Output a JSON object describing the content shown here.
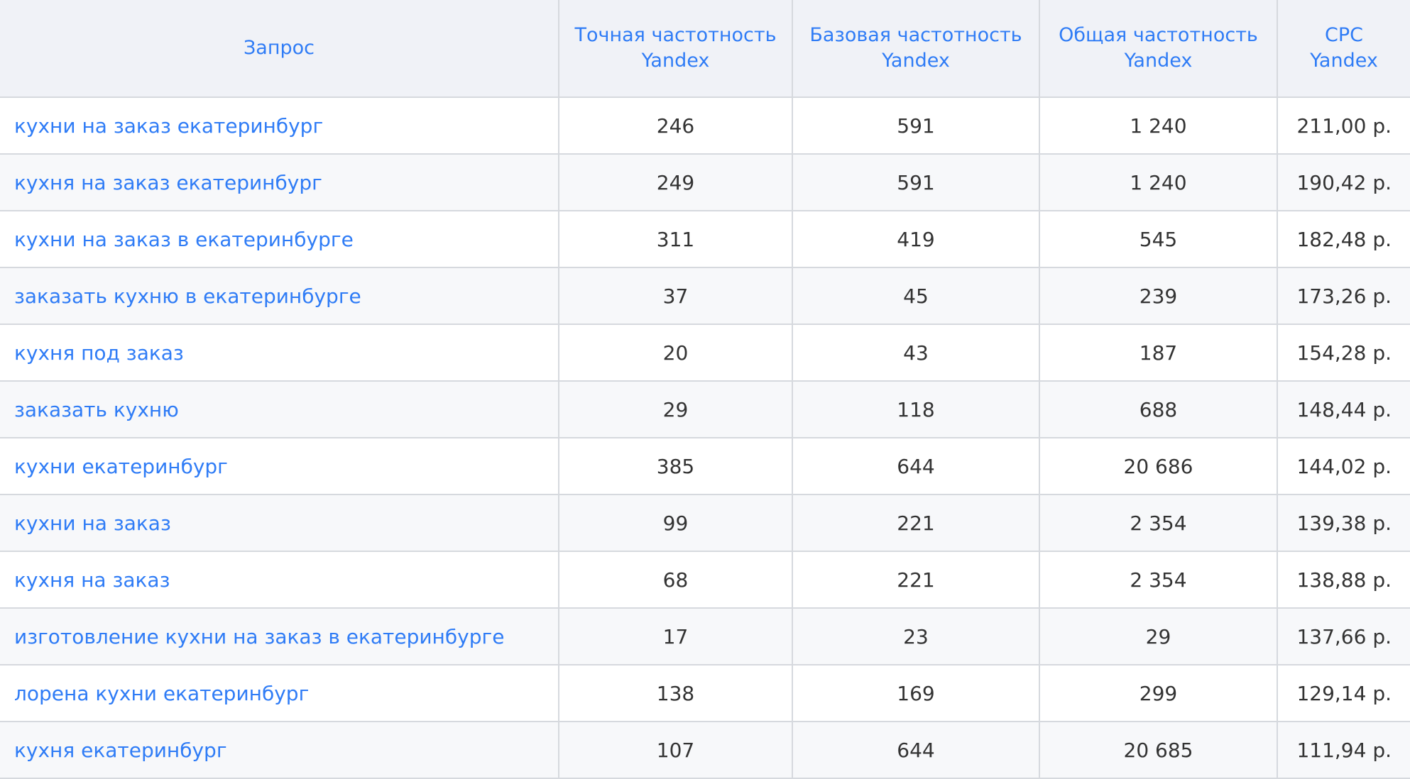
{
  "headers": [
    "Запрос",
    "Точная частотность Yandex",
    "Базовая частотность Yandex",
    "Общая частотность Yandex",
    "CPC Yandex"
  ],
  "header_lines": [
    [
      "Запрос"
    ],
    [
      "Точная частотность",
      "Yandex"
    ],
    [
      "Базовая частотность",
      "Yandex"
    ],
    [
      "Общая частотность",
      "Yandex"
    ],
    [
      "CPC",
      "Yandex"
    ]
  ],
  "rows": [
    [
      "кухни на заказ екатеринбург",
      "246",
      "591",
      "1 240",
      "211,00 р."
    ],
    [
      "кухня на заказ екатеринбург",
      "249",
      "591",
      "1 240",
      "190,42 р."
    ],
    [
      "кухни на заказ в екатеринбурге",
      "311",
      "419",
      "545",
      "182,48 р."
    ],
    [
      "заказать кухню в екатеринбурге",
      "37",
      "45",
      "239",
      "173,26 р."
    ],
    [
      "кухня под заказ",
      "20",
      "43",
      "187",
      "154,28 р."
    ],
    [
      "заказать кухню",
      "29",
      "118",
      "688",
      "148,44 р."
    ],
    [
      "кухни екатеринбург",
      "385",
      "644",
      "20 686",
      "144,02 р."
    ],
    [
      "кухни на заказ",
      "99",
      "221",
      "2 354",
      "139,38 р."
    ],
    [
      "кухня на заказ",
      "68",
      "221",
      "2 354",
      "138,88 р."
    ],
    [
      "изготовление кухни на заказ в екатеринбурге",
      "17",
      "23",
      "29",
      "137,66 р."
    ],
    [
      "лорена кухни екатеринбург",
      "138",
      "169",
      "299",
      "129,14 р."
    ],
    [
      "кухня екатеринбург",
      "107",
      "644",
      "20 685",
      "111,94 р."
    ]
  ],
  "colors": {
    "link": "#2f7cf6",
    "header_bg": "#f0f2f7",
    "border": "#d6d9de",
    "stripe": "#f7f8fa",
    "text": "#333333"
  }
}
